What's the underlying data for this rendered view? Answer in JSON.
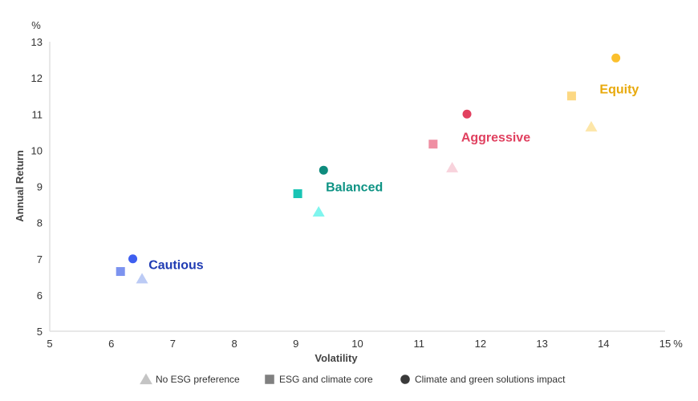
{
  "chart_data": {
    "type": "scatter",
    "title": "",
    "xlabel": "Volatility",
    "ylabel": "Annual Return",
    "x_unit": "%",
    "y_unit": "%",
    "xlim": [
      5,
      15
    ],
    "ylim": [
      5,
      13
    ],
    "x_ticks": [
      "5",
      "6",
      "7",
      "8",
      "9",
      "10",
      "11",
      "12",
      "13",
      "14",
      "15"
    ],
    "y_ticks": [
      "5",
      "6",
      "7",
      "8",
      "9",
      "10",
      "11",
      "12",
      "13"
    ],
    "grid": false,
    "legend_position": "bottom",
    "legend": [
      {
        "name": "No ESG preference",
        "marker": "triangle",
        "color": "#c4c4c4"
      },
      {
        "name": "ESG and climate core",
        "marker": "square",
        "color": "#808080"
      },
      {
        "name": "Climate and green solutions impact",
        "marker": "circle",
        "color": "#3a3a3a"
      }
    ],
    "groups": [
      {
        "name": "Cautious",
        "label_color": "#1f3bb3",
        "points": [
          {
            "series": "No ESG preference",
            "marker": "triangle",
            "x": 6.5,
            "y": 6.45,
            "color": "#bccbf5"
          },
          {
            "series": "ESG and climate core",
            "marker": "square",
            "x": 6.15,
            "y": 6.65,
            "color": "#7c93ef"
          },
          {
            "series": "Climate and green solutions impact",
            "marker": "circle",
            "x": 6.35,
            "y": 7.0,
            "color": "#3e5ff0"
          }
        ]
      },
      {
        "name": "Balanced",
        "label_color": "#0e9384",
        "points": [
          {
            "series": "No ESG preference",
            "marker": "triangle",
            "x": 9.37,
            "y": 8.3,
            "color": "#80f5ee"
          },
          {
            "series": "ESG and climate core",
            "marker": "square",
            "x": 9.03,
            "y": 8.8,
            "color": "#19c4b4"
          },
          {
            "series": "Climate and green solutions impact",
            "marker": "circle",
            "x": 9.45,
            "y": 9.45,
            "color": "#0e8b7d"
          }
        ]
      },
      {
        "name": "Aggressive",
        "label_color": "#e0405f",
        "points": [
          {
            "series": "No ESG preference",
            "marker": "triangle",
            "x": 11.54,
            "y": 9.52,
            "color": "#f8d3dc"
          },
          {
            "series": "ESG and climate core",
            "marker": "square",
            "x": 11.23,
            "y": 10.17,
            "color": "#ef8fa3"
          },
          {
            "series": "Climate and green solutions impact",
            "marker": "circle",
            "x": 11.78,
            "y": 11.0,
            "color": "#e2405f"
          }
        ]
      },
      {
        "name": "Equity",
        "label_color": "#e8a90c",
        "points": [
          {
            "series": "No ESG preference",
            "marker": "triangle",
            "x": 13.8,
            "y": 10.65,
            "color": "#fde6a8"
          },
          {
            "series": "ESG and climate core",
            "marker": "square",
            "x": 13.48,
            "y": 11.5,
            "color": "#fcd883"
          },
          {
            "series": "Climate and green solutions impact",
            "marker": "circle",
            "x": 14.2,
            "y": 12.55,
            "color": "#fbc02d"
          }
        ]
      }
    ]
  }
}
